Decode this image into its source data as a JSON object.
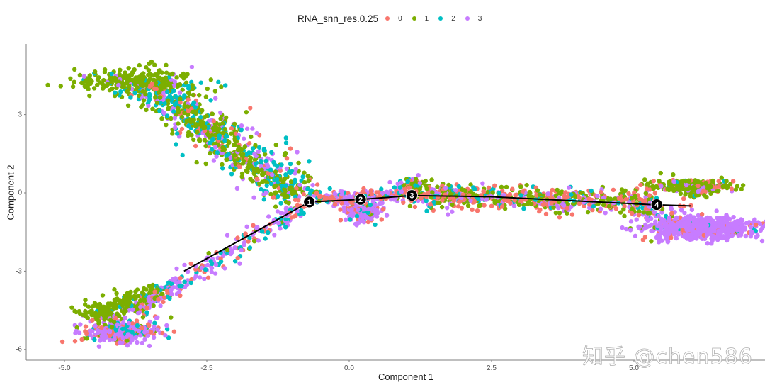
{
  "chart_data": {
    "type": "scatter",
    "title": "",
    "xlabel": "Component 1",
    "ylabel": "Component 2",
    "xlim": [
      -5.5,
      6.5
    ],
    "ylim": [
      -6.4,
      5.1
    ],
    "x_ticks": [
      {
        "value": -5.0,
        "label": "-5.0"
      },
      {
        "value": -2.5,
        "label": "-2.5"
      },
      {
        "value": 0.0,
        "label": "0.0"
      },
      {
        "value": 2.5,
        "label": "2.5"
      },
      {
        "value": 5.0,
        "label": "5.0"
      }
    ],
    "y_ticks": [
      {
        "value": 3,
        "label": "3"
      },
      {
        "value": 0,
        "label": "0"
      },
      {
        "value": -3,
        "label": "-3"
      },
      {
        "value": -6,
        "label": "-6"
      }
    ],
    "grid": false,
    "legend": {
      "title": "RNA_snn_res.0.25",
      "position": "top",
      "entries": [
        {
          "label": "0",
          "color": "#F8766D"
        },
        {
          "label": "1",
          "color": "#7CAE00"
        },
        {
          "label": "2",
          "color": "#00BFC4"
        },
        {
          "label": "3",
          "color": "#C77CFF"
        }
      ]
    },
    "trajectory": {
      "path": [
        [
          -2.9,
          -3.0
        ],
        [
          -0.7,
          -0.35
        ],
        [
          0.2,
          -0.25
        ],
        [
          1.1,
          -0.1
        ],
        [
          2.5,
          -0.15
        ],
        [
          5.3,
          -0.45
        ],
        [
          6.0,
          -0.5
        ]
      ],
      "branch_points": [
        {
          "label": "1",
          "x": -0.7,
          "y": -0.35
        },
        {
          "label": "2",
          "x": 0.2,
          "y": -0.25
        },
        {
          "label": "3",
          "x": 1.1,
          "y": -0.1
        },
        {
          "label": "4",
          "x": 5.4,
          "y": -0.45
        }
      ]
    },
    "series": [
      {
        "name": "0",
        "color": "#F8766D",
        "regions": [
          "lower-left tip",
          "main stem",
          "cluster near node 2",
          "right tips"
        ]
      },
      {
        "name": "1",
        "color": "#7CAE00",
        "regions": [
          "upper-left branch (dominant)",
          "lower-left upper edge",
          "main stem",
          "upper-right tip"
        ]
      },
      {
        "name": "2",
        "color": "#00BFC4",
        "regions": [
          "upper-left branch",
          "lower-left tip",
          "main stem"
        ]
      },
      {
        "name": "3",
        "color": "#C77CFF",
        "regions": [
          "lower-left branch",
          "cluster near node 2",
          "lower-right tip (dominant)"
        ]
      }
    ],
    "clusters": [
      {
        "name": "upper-left-green",
        "cx": -3.7,
        "cy": 4.3,
        "sx": 0.55,
        "sy": 0.25,
        "n": 260,
        "mix": [
          0.03,
          0.85,
          0.07,
          0.05
        ]
      },
      {
        "name": "upper-left-band",
        "from": [
          -3.6,
          4.2
        ],
        "to": [
          -0.75,
          -0.2
        ],
        "spread": 0.3,
        "n": 600,
        "mix": [
          0.12,
          0.4,
          0.3,
          0.18
        ]
      },
      {
        "name": "upper-left-lower-band",
        "from": [
          -3.0,
          3.3
        ],
        "to": [
          -1.0,
          -0.1
        ],
        "spread": 0.15,
        "n": 200,
        "mix": [
          0.05,
          0.85,
          0.08,
          0.02
        ]
      },
      {
        "name": "lower-left-tip",
        "cx": -4.0,
        "cy": -5.3,
        "sx": 0.35,
        "sy": 0.22,
        "n": 320,
        "mix": [
          0.25,
          0.05,
          0.15,
          0.55
        ]
      },
      {
        "name": "lower-left-green",
        "from": [
          -4.6,
          -4.8
        ],
        "to": [
          -3.3,
          -3.7
        ],
        "spread": 0.2,
        "n": 200,
        "mix": [
          0.02,
          0.9,
          0.06,
          0.02
        ]
      },
      {
        "name": "lower-left-band",
        "from": [
          -3.8,
          -4.6
        ],
        "to": [
          -0.8,
          -0.45
        ],
        "spread": 0.14,
        "n": 260,
        "mix": [
          0.2,
          0.08,
          0.22,
          0.5
        ]
      },
      {
        "name": "node2-cluster",
        "cx": 0.25,
        "cy": -0.65,
        "sx": 0.18,
        "sy": 0.22,
        "n": 220,
        "mix": [
          0.25,
          0.02,
          0.1,
          0.63
        ]
      },
      {
        "name": "node3-blob",
        "cx": 1.1,
        "cy": 0.35,
        "sx": 0.12,
        "sy": 0.12,
        "n": 50,
        "mix": [
          0.1,
          0.5,
          0.2,
          0.2
        ]
      },
      {
        "name": "stem-1-3",
        "from": [
          -0.6,
          -0.25
        ],
        "to": [
          1.1,
          -0.05
        ],
        "spread": 0.12,
        "n": 200,
        "mix": [
          0.4,
          0.05,
          0.15,
          0.4
        ]
      },
      {
        "name": "stem-3-4",
        "from": [
          1.1,
          -0.05
        ],
        "to": [
          5.4,
          -0.4
        ],
        "spread": 0.22,
        "n": 700,
        "mix": [
          0.35,
          0.35,
          0.12,
          0.18
        ]
      },
      {
        "name": "upper-right-tip",
        "cx": 6.0,
        "cy": 0.25,
        "sx": 0.35,
        "sy": 0.15,
        "n": 260,
        "mix": [
          0.15,
          0.7,
          0.03,
          0.12
        ]
      },
      {
        "name": "lower-right-tip",
        "cx": 6.2,
        "cy": -1.35,
        "sx": 0.45,
        "sy": 0.2,
        "n": 700,
        "mix": [
          0.06,
          0.01,
          0.02,
          0.91
        ]
      },
      {
        "name": "lower-right-scatter",
        "from": [
          5.3,
          -0.6
        ],
        "to": [
          5.8,
          -1.6
        ],
        "spread": 0.25,
        "n": 80,
        "mix": [
          0.25,
          0.05,
          0.1,
          0.6
        ]
      }
    ]
  },
  "watermark": "知乎 @chen586"
}
